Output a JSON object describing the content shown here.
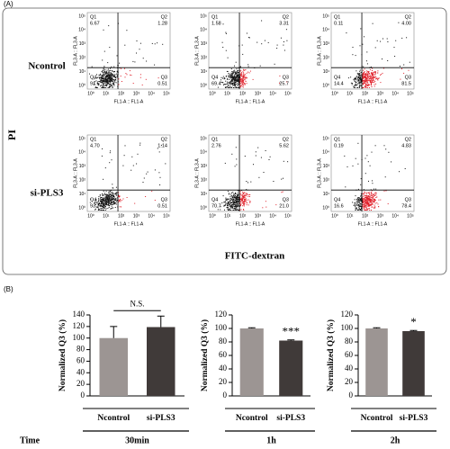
{
  "panel_a": {
    "label": "(A)",
    "y_label": "PI",
    "x_label": "FITC-dextran",
    "row_labels": [
      "Ncontrol",
      "si-PLS3"
    ],
    "x_axis_title": "FL1-A :: FL1-A",
    "y_axis_title": "FL3-A :: FL3-A",
    "axis_ticks": [
      "10⁰",
      "10¹",
      "10²",
      "10³",
      "10⁴",
      "10⁵"
    ],
    "quadrant_names": [
      "Q1",
      "Q2",
      "Q3",
      "Q4"
    ],
    "plots": [
      {
        "q1": "6.67",
        "q2": "1.28",
        "q3": "0.51",
        "q4": "91.5"
      },
      {
        "q1": "1.58",
        "q2": "3.31",
        "q3": "25.7",
        "q4": "69.4"
      },
      {
        "q1": "0.11",
        "q2": "4.00",
        "q3": "81.5",
        "q4": "14.4"
      },
      {
        "q1": "4.70",
        "q2": "1.14",
        "q3": "0.51",
        "q4": "93.7"
      },
      {
        "q1": "2.76",
        "q2": "5.62",
        "q3": "21.0",
        "q4": "70.7"
      },
      {
        "q1": "0.19",
        "q2": "4.83",
        "q3": "78.4",
        "q4": "16.6"
      }
    ]
  },
  "panel_b": {
    "label": "(B)",
    "time_label": "Time"
  },
  "chart_data": [
    {
      "type": "bar",
      "y_label": "Normalized Q3 (%)",
      "time": "30min",
      "annotation": "N.S.",
      "categories": [
        "Ncontrol",
        "si-PLS3"
      ],
      "values": [
        100,
        119
      ],
      "errors": [
        20,
        19
      ],
      "colors": [
        "#9c9593",
        "#403a39"
      ],
      "ylim": [
        0,
        140
      ],
      "yticks": [
        0,
        20,
        40,
        60,
        80,
        100,
        120,
        140
      ]
    },
    {
      "type": "bar",
      "y_label": "Normalized Q3 (%)",
      "time": "1h",
      "annotation": "***",
      "categories": [
        "Ncontrol",
        "si-PLS3"
      ],
      "values": [
        100,
        82
      ],
      "errors": [
        1,
        1
      ],
      "colors": [
        "#9c9593",
        "#403a39"
      ],
      "ylim": [
        0,
        120
      ],
      "yticks": [
        0,
        20,
        40,
        60,
        80,
        100,
        120
      ]
    },
    {
      "type": "bar",
      "y_label": "Normalized Q3 (%)",
      "time": "2h",
      "annotation": "*",
      "categories": [
        "Ncontrol",
        "si-PLS3"
      ],
      "values": [
        100,
        96
      ],
      "errors": [
        1,
        1
      ],
      "colors": [
        "#9c9593",
        "#403a39"
      ],
      "ylim": [
        0,
        120
      ],
      "yticks": [
        0,
        20,
        40,
        60,
        80,
        100,
        120
      ]
    }
  ]
}
